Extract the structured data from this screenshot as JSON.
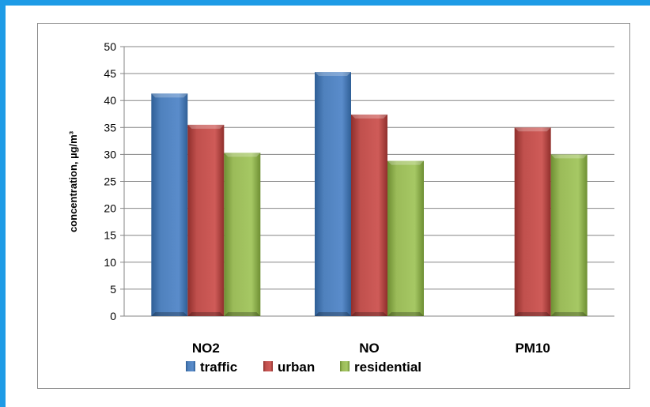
{
  "chart_data": {
    "type": "bar",
    "categories": [
      "NO2",
      "NO",
      "PM10"
    ],
    "series": [
      {
        "name": "traffic",
        "color": "#4f81bd",
        "values": [
          41.3,
          45.3,
          null
        ]
      },
      {
        "name": "urban",
        "color": "#c0504d",
        "values": [
          35.5,
          37.4,
          35.0
        ]
      },
      {
        "name": "residential",
        "color": "#9bbb59",
        "values": [
          30.3,
          28.8,
          30.0
        ]
      }
    ],
    "ylabel": "concentration, µg/m³",
    "ylim": [
      0,
      50
    ],
    "yticks": [
      0,
      5,
      10,
      15,
      20,
      25,
      30,
      35,
      40,
      45,
      50
    ],
    "grid": true,
    "legend_position": "bottom"
  }
}
